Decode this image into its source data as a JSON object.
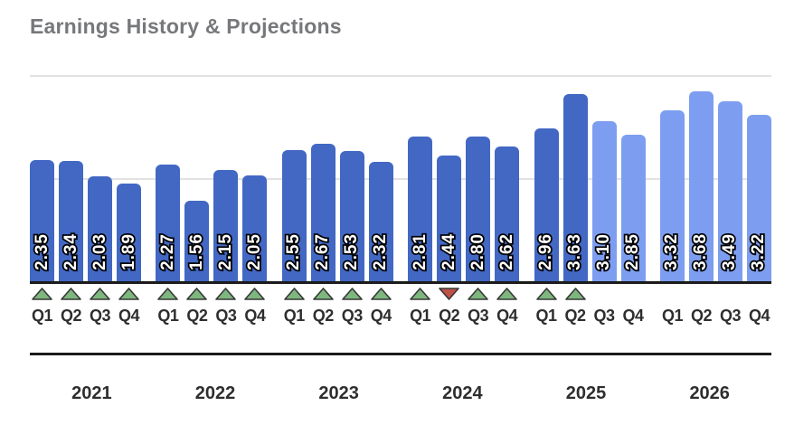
{
  "title": "Earnings History & Projections",
  "colors": {
    "bar_actual": "#4268c4",
    "bar_projected": "#7d9ef0",
    "indicator_up": "#7eb77e",
    "indicator_down": "#bf5149",
    "indicator_stroke": "#383838",
    "grid": "#e2e2e2",
    "axis": "#1b1b1b",
    "title_text": "#77787b",
    "label_text": "#2e2e2e"
  },
  "chart_data": {
    "type": "bar",
    "title": "Earnings History & Projections",
    "xlabel": "",
    "ylabel": "",
    "ylim": [
      0,
      4.35
    ],
    "gridlines_y": [
      2.0,
      4.0
    ],
    "grid": "horizontal-only",
    "legend": "none",
    "bar_styles": {
      "actual": "dark blue",
      "projected": "light blue"
    },
    "years": [
      {
        "year": "2021",
        "quarters": [
          {
            "label": "Q1",
            "value": 2.35,
            "display": "2.35",
            "type": "actual",
            "indicator": "up"
          },
          {
            "label": "Q2",
            "value": 2.34,
            "display": "2.34",
            "type": "actual",
            "indicator": "up"
          },
          {
            "label": "Q3",
            "value": 2.03,
            "display": "2.03",
            "type": "actual",
            "indicator": "up"
          },
          {
            "label": "Q4",
            "value": 1.89,
            "display": "1.89",
            "type": "actual",
            "indicator": "up"
          }
        ]
      },
      {
        "year": "2022",
        "quarters": [
          {
            "label": "Q1",
            "value": 2.27,
            "display": "2.27",
            "type": "actual",
            "indicator": "up"
          },
          {
            "label": "Q2",
            "value": 1.56,
            "display": "1.56",
            "type": "actual",
            "indicator": "up"
          },
          {
            "label": "Q3",
            "value": 2.15,
            "display": "2.15",
            "type": "actual",
            "indicator": "up"
          },
          {
            "label": "Q4",
            "value": 2.05,
            "display": "2.05",
            "type": "actual",
            "indicator": "up"
          }
        ]
      },
      {
        "year": "2023",
        "quarters": [
          {
            "label": "Q1",
            "value": 2.55,
            "display": "2.55",
            "type": "actual",
            "indicator": "up"
          },
          {
            "label": "Q2",
            "value": 2.67,
            "display": "2.67",
            "type": "actual",
            "indicator": "up"
          },
          {
            "label": "Q3",
            "value": 2.53,
            "display": "2.53",
            "type": "actual",
            "indicator": "up"
          },
          {
            "label": "Q4",
            "value": 2.32,
            "display": "2.32",
            "type": "actual",
            "indicator": "up"
          }
        ]
      },
      {
        "year": "2024",
        "quarters": [
          {
            "label": "Q1",
            "value": 2.81,
            "display": "2.81",
            "type": "actual",
            "indicator": "up"
          },
          {
            "label": "Q2",
            "value": 2.44,
            "display": "2.44",
            "type": "actual",
            "indicator": "down"
          },
          {
            "label": "Q3",
            "value": 2.8,
            "display": "2.80",
            "type": "actual",
            "indicator": "up"
          },
          {
            "label": "Q4",
            "value": 2.62,
            "display": "2.62",
            "type": "actual",
            "indicator": "up"
          }
        ]
      },
      {
        "year": "2025",
        "quarters": [
          {
            "label": "Q1",
            "value": 2.96,
            "display": "2.96",
            "type": "actual",
            "indicator": "up"
          },
          {
            "label": "Q2",
            "value": 3.63,
            "display": "3.63",
            "type": "actual",
            "indicator": "up"
          },
          {
            "label": "Q3",
            "value": 3.1,
            "display": "3.10",
            "type": "projected",
            "indicator": "none"
          },
          {
            "label": "Q4",
            "value": 2.85,
            "display": "2.85",
            "type": "projected",
            "indicator": "none"
          }
        ]
      },
      {
        "year": "2026",
        "quarters": [
          {
            "label": "Q1",
            "value": 3.32,
            "display": "3.32",
            "type": "projected",
            "indicator": "none"
          },
          {
            "label": "Q2",
            "value": 3.68,
            "display": "3.68",
            "type": "projected",
            "indicator": "none"
          },
          {
            "label": "Q3",
            "value": 3.49,
            "display": "3.49",
            "type": "projected",
            "indicator": "none"
          },
          {
            "label": "Q4",
            "value": 3.22,
            "display": "3.22",
            "type": "projected",
            "indicator": "none"
          }
        ]
      }
    ]
  }
}
